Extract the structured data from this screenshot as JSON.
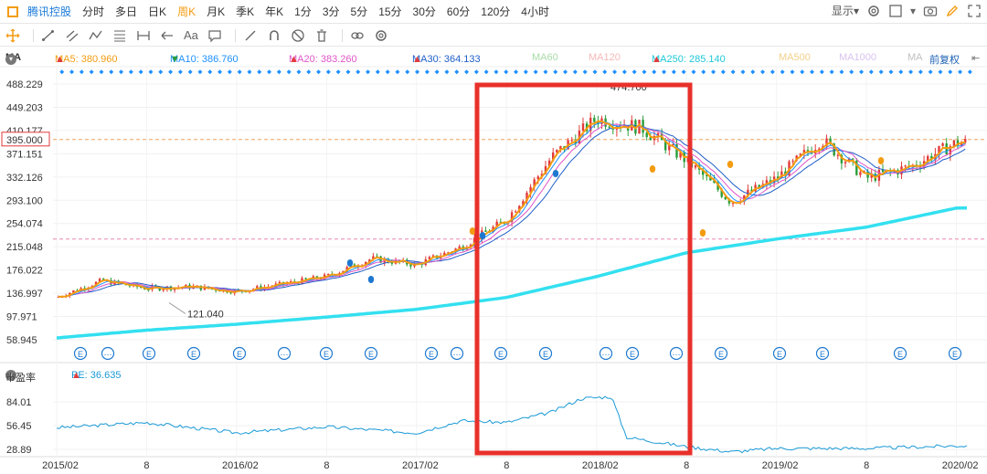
{
  "toolbar": {
    "stock_name": "腾讯控股",
    "timeframes": [
      "分时",
      "多日",
      "日K",
      "周K",
      "月K",
      "季K",
      "年K",
      "1分",
      "3分",
      "5分",
      "15分",
      "30分",
      "60分",
      "120分",
      "4小时"
    ],
    "active_timeframe": "周K",
    "display_label": "显示",
    "text_tool": "Aa"
  },
  "indicators": {
    "main_label": "MA",
    "ma5": "MA5: 380.960",
    "ma10": "MA10: 386.760",
    "ma20": "MA20: 383.260",
    "ma30": "MA30: 364.133",
    "ma60": "MA60",
    "ma120": "MA120",
    "ma250": "MA250: 285.140",
    "ma500": "MA500",
    "ma1000": "MA1000",
    "ma_more": "MA",
    "adjust": "前复权",
    "pe_panel_label": "市盈率",
    "pe_value": "PE: 36.635"
  },
  "colors": {
    "accent": "#f39c12",
    "up": "#e23b3b",
    "down": "#2a9d3a",
    "ma5": "#f39c12",
    "ma10": "#1e90ff",
    "ma20": "#e055c8",
    "ma30": "#1f5fc8",
    "ma60": "#7ec87e",
    "ma120": "#f7a1a1",
    "ma250": "#33e0f0",
    "ma500": "#f3d08a",
    "ma1000": "#c9a6e8",
    "pe": "#1a9ad6",
    "highlight": "#e8302a"
  },
  "chart_data": [
    {
      "type": "candlestick",
      "title": "",
      "x_ticks": [
        "2015/02",
        "8",
        "2016/02",
        "8",
        "2017/02",
        "8",
        "2018/02",
        "8",
        "2019/02",
        "8",
        "2020/02"
      ],
      "y_ticks": [
        58.945,
        97.971,
        136.997,
        176.022,
        215.048,
        254.074,
        293.1,
        332.126,
        371.151,
        410.177,
        449.203,
        488.229
      ],
      "ylim": [
        50,
        500
      ],
      "current_price": "395.000",
      "annotations": [
        "121.040",
        "474.700"
      ],
      "close_series": {
        "x": [
          "2015/02",
          "2015/05",
          "2015/08",
          "2015/11",
          "2016/02",
          "2016/05",
          "2016/08",
          "2016/11",
          "2017/02",
          "2017/05",
          "2017/08",
          "2017/11",
          "2018/02",
          "2018/05",
          "2018/08",
          "2018/11",
          "2019/02",
          "2019/05",
          "2019/08",
          "2019/11",
          "2020/02"
        ],
        "values": [
          130,
          158,
          145,
          148,
          140,
          152,
          165,
          195,
          185,
          215,
          260,
          365,
          430,
          415,
          360,
          290,
          330,
          395,
          330,
          350,
          390
        ]
      },
      "ma250_series": {
        "x": [
          "2015/02",
          "2015/08",
          "2016/02",
          "2016/08",
          "2017/02",
          "2017/08",
          "2018/02",
          "2018/08",
          "2019/02",
          "2019/08",
          "2020/02"
        ],
        "values": [
          62,
          75,
          85,
          97,
          110,
          130,
          165,
          205,
          228,
          248,
          280
        ]
      }
    },
    {
      "type": "line",
      "title": "",
      "y_ticks": [
        28.89,
        56.45,
        84.01
      ],
      "ylim": [
        20,
        95
      ],
      "series": [
        {
          "x": [
            "2015/02",
            "2015/08",
            "2016/02",
            "2016/08",
            "2017/02",
            "2017/05",
            "2017/08",
            "2017/11",
            "2018/01",
            "2018/03",
            "2018/04",
            "2018/08",
            "2018/11",
            "2019/02",
            "2019/08",
            "2020/02"
          ],
          "values": [
            54,
            60,
            48,
            55,
            48,
            62,
            60,
            72,
            88,
            90,
            43,
            32,
            26,
            30,
            30,
            33
          ]
        }
      ]
    }
  ]
}
